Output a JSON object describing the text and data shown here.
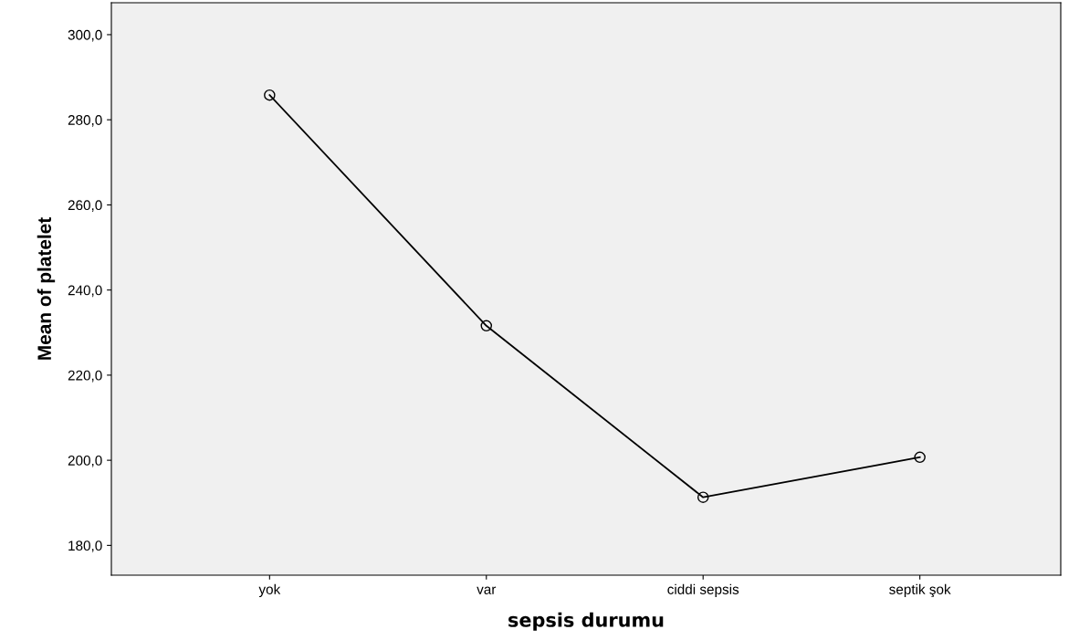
{
  "chart_data": {
    "type": "line",
    "xlabel": "sepsis durumu",
    "ylabel": "Mean of platelet",
    "categories": [
      "yok",
      "var",
      "ciddi sepsis",
      "septik şok"
    ],
    "series": [
      {
        "color": "#000000",
        "values": [
          285.8,
          231.6,
          191.3,
          200.7
        ]
      }
    ],
    "ylim": [
      173,
      307.5
    ],
    "yticks": [
      {
        "value": 180,
        "label": "180,0"
      },
      {
        "value": 200,
        "label": "200,0"
      },
      {
        "value": 220,
        "label": "220,0"
      },
      {
        "value": 240,
        "label": "240,0"
      },
      {
        "value": 260,
        "label": "260,0"
      },
      {
        "value": 280,
        "label": "280,0"
      },
      {
        "value": 300,
        "label": "300,0"
      }
    ],
    "marker": "circle",
    "line_style": "solid",
    "grid": false,
    "legend": false
  }
}
